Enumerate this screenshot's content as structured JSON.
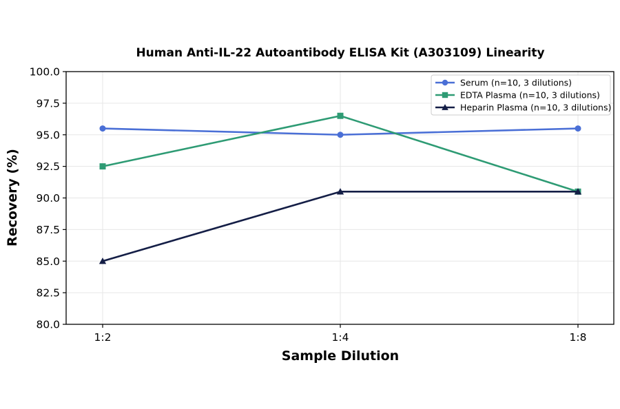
{
  "chart_data": {
    "type": "line",
    "title": "Human Anti-IL-22 Autoantibody ELISA Kit (A303109) Linearity",
    "xlabel": "Sample Dilution",
    "ylabel": "Recovery (%)",
    "categories": [
      "1:2",
      "1:4",
      "1:8"
    ],
    "ylim": [
      80.0,
      100.0
    ],
    "yticks": [
      "80.0",
      "82.5",
      "85.0",
      "87.5",
      "90.0",
      "92.5",
      "95.0",
      "97.5",
      "100.0"
    ],
    "grid": true,
    "legend_position": "top-right",
    "series": [
      {
        "name": "Serum (n=10, 3 dilutions)",
        "values": [
          95.5,
          95.0,
          95.5
        ],
        "color": "#4a6fd6",
        "marker": "circle"
      },
      {
        "name": "EDTA Plasma (n=10, 3 dilutions)",
        "values": [
          92.5,
          96.5,
          90.5
        ],
        "color": "#2e9b74",
        "marker": "square"
      },
      {
        "name": "Heparin Plasma (n=10, 3 dilutions)",
        "values": [
          85.0,
          90.5,
          90.5
        ],
        "color": "#141e46",
        "marker": "triangle"
      }
    ]
  }
}
